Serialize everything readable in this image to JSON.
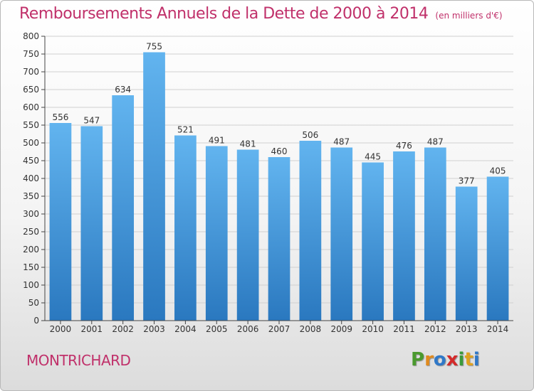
{
  "header": {
    "title": "Remboursements Annuels de la Dette de 2000 à 2014",
    "unit": "(en milliers d'€)"
  },
  "footer": {
    "commune": "MONTRICHARD",
    "logo_letters": [
      "P",
      "r",
      "o",
      "x",
      "i",
      "t",
      "i"
    ],
    "logo_colors": [
      "#4a9a2e",
      "#e08a1e",
      "#2f78c8",
      "#d42a2a",
      "#3a9a3a",
      "#e0a21e",
      "#2f78c8"
    ]
  },
  "colors": {
    "title": "#c0306a",
    "bar_top": "#62b4ef",
    "bar_bottom": "#2a78bf",
    "grid": "#d0d0d0",
    "axis": "#444444",
    "text": "#333333"
  },
  "chart_data": {
    "type": "bar",
    "title": "Remboursements Annuels de la Dette de 2000 à 2014",
    "subtitle": "(en milliers d'€)",
    "xlabel": "",
    "ylabel": "",
    "categories": [
      "2000",
      "2001",
      "2002",
      "2003",
      "2004",
      "2005",
      "2006",
      "2007",
      "2008",
      "2009",
      "2010",
      "2011",
      "2012",
      "2013",
      "2014"
    ],
    "values": [
      556,
      547,
      634,
      755,
      521,
      491,
      481,
      460,
      506,
      487,
      445,
      476,
      487,
      377,
      405
    ],
    "ylim": [
      0,
      800
    ],
    "yticks": [
      0,
      50,
      100,
      150,
      200,
      250,
      300,
      350,
      400,
      450,
      500,
      550,
      600,
      650,
      700,
      750,
      800
    ],
    "grid": true,
    "data_labels": true
  }
}
